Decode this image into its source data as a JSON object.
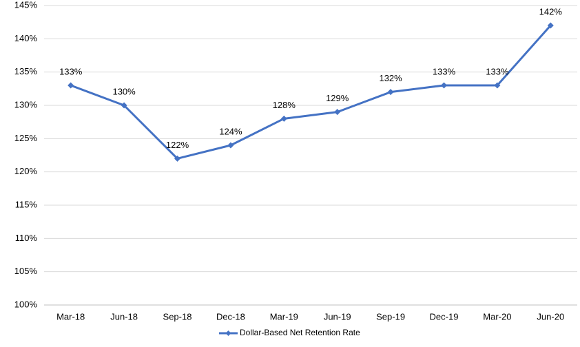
{
  "chart_data": {
    "type": "line",
    "categories": [
      "Mar-18",
      "Jun-18",
      "Sep-18",
      "Dec-18",
      "Mar-19",
      "Jun-19",
      "Sep-19",
      "Dec-19",
      "Mar-20",
      "Jun-20"
    ],
    "series": [
      {
        "name": "Dollar-Based Net Retention Rate",
        "color": "#4472c4",
        "values": [
          133,
          130,
          122,
          124,
          128,
          129,
          132,
          133,
          133,
          142
        ],
        "value_labels": [
          "133%",
          "130%",
          "122%",
          "124%",
          "128%",
          "129%",
          "132%",
          "133%",
          "133%",
          "142%"
        ]
      }
    ],
    "ylim": [
      100,
      145
    ],
    "yticks": [
      {
        "value": 100,
        "label": "100%"
      },
      {
        "value": 105,
        "label": "105%"
      },
      {
        "value": 110,
        "label": "110%"
      },
      {
        "value": 115,
        "label": "115%"
      },
      {
        "value": 120,
        "label": "120%"
      },
      {
        "value": 125,
        "label": "125%"
      },
      {
        "value": 130,
        "label": "130%"
      },
      {
        "value": 135,
        "label": "135%"
      },
      {
        "value": 140,
        "label": "140%"
      },
      {
        "value": 145,
        "label": "145%"
      }
    ],
    "grid": true,
    "legend": "bottom"
  }
}
